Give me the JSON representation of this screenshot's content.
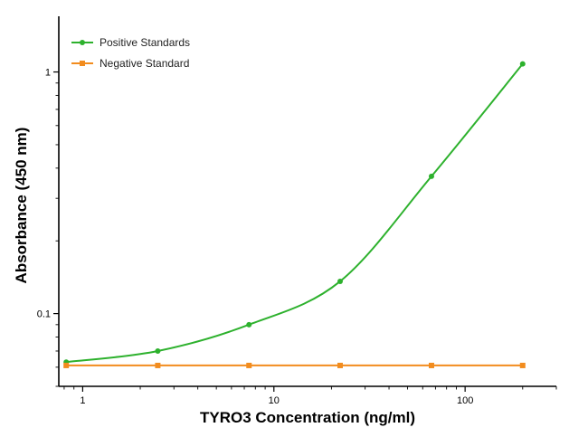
{
  "chart_data": {
    "type": "line",
    "title": "",
    "xlabel": "TYRO3 Concentration (ng/ml)",
    "ylabel": "Absorbance (450 nm)",
    "xscale": "log",
    "yscale": "log",
    "xlim": [
      0.75,
      300
    ],
    "ylim": [
      0.05,
      1.7
    ],
    "x_ticks": [
      {
        "value": 1,
        "label": "1"
      },
      {
        "value": 10,
        "label": "10"
      },
      {
        "value": 100,
        "label": "100"
      }
    ],
    "y_ticks": [
      {
        "value": 0.1,
        "label": "0.1"
      },
      {
        "value": 1,
        "label": "1"
      }
    ],
    "grid": false,
    "legend_position": "top-left",
    "series": [
      {
        "name": "Positive Standards",
        "color": "#2db12d",
        "marker": "circle",
        "fit": "sigmoidal curve",
        "x": [
          0.82,
          2.47,
          7.41,
          22.2,
          66.7,
          200
        ],
        "y": [
          0.063,
          0.07,
          0.09,
          0.136,
          0.37,
          1.08
        ]
      },
      {
        "name": "Negative Standard",
        "color": "#f28c1e",
        "marker": "square",
        "fit": "line",
        "x": [
          0.82,
          2.47,
          7.41,
          22.2,
          66.7,
          200
        ],
        "y": [
          0.061,
          0.061,
          0.061,
          0.061,
          0.061,
          0.061
        ]
      }
    ]
  }
}
